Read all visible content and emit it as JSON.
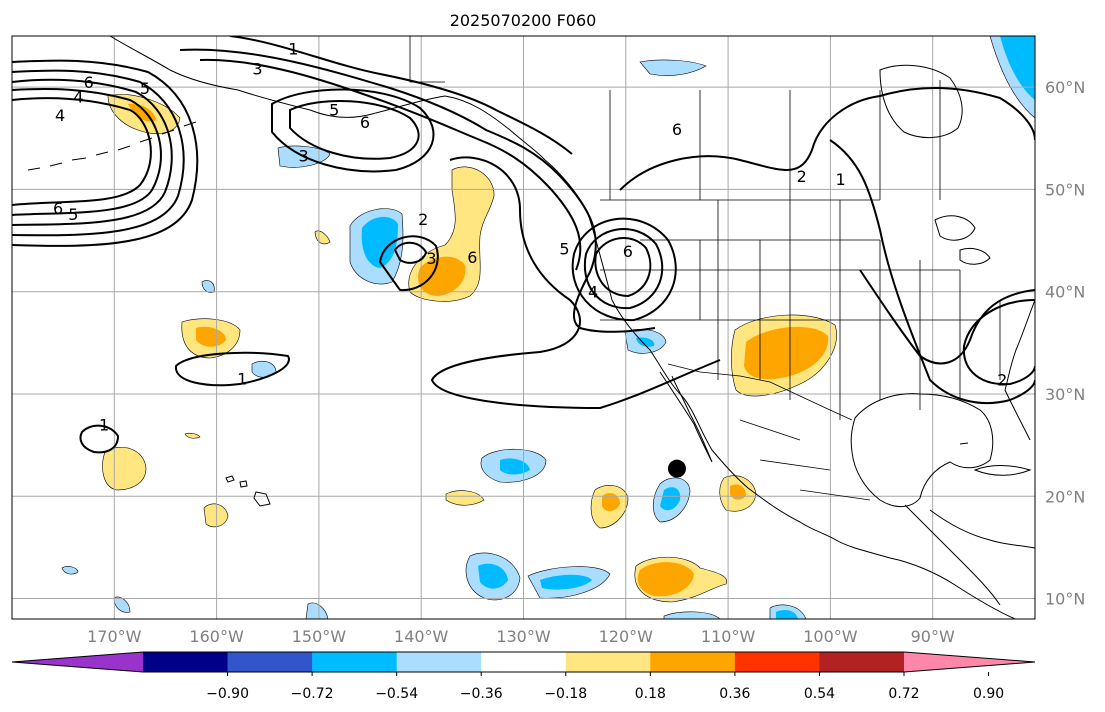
{
  "map": {
    "title": "2025070200 F060",
    "projection": "equirectangular",
    "lon_range": [
      -180,
      -80
    ],
    "lat_range": [
      8,
      65
    ],
    "lon_ticks": [
      {
        "value": -170,
        "label": "170°W"
      },
      {
        "value": -160,
        "label": "160°W"
      },
      {
        "value": -150,
        "label": "150°W"
      },
      {
        "value": -140,
        "label": "140°W"
      },
      {
        "value": -130,
        "label": "130°W"
      },
      {
        "value": -120,
        "label": "120°W"
      },
      {
        "value": -110,
        "label": "110°W"
      },
      {
        "value": -100,
        "label": "100°W"
      },
      {
        "value": -90,
        "label": "90°W"
      }
    ],
    "lat_ticks": [
      {
        "value": 10,
        "label": "10°N"
      },
      {
        "value": 20,
        "label": "20°N"
      },
      {
        "value": 30,
        "label": "30°N"
      },
      {
        "value": 40,
        "label": "40°N"
      },
      {
        "value": 50,
        "label": "50°N"
      },
      {
        "value": 60,
        "label": "60°N"
      }
    ],
    "marker": {
      "lon": -115,
      "lat": 22.7,
      "color": "#000000"
    }
  },
  "colorbar": {
    "bins": [
      {
        "color": "#9933cc"
      },
      {
        "color": "#000088"
      },
      {
        "color": "#3355cc"
      },
      {
        "color": "#00bbff"
      },
      {
        "color": "#aaddff"
      },
      {
        "color": "#ffffff"
      },
      {
        "color": "#ffe680"
      },
      {
        "color": "#ffa500"
      },
      {
        "color": "#ff3300"
      },
      {
        "color": "#b22222"
      },
      {
        "color": "#ff88aa"
      }
    ],
    "ticks": [
      "−0.90",
      "−0.72",
      "−0.54",
      "−0.36",
      "−0.18",
      "0.18",
      "0.36",
      "0.54",
      "0.72",
      "0.90"
    ]
  },
  "contour_labels": [
    {
      "text": "1",
      "lon": -152.5,
      "lat": 63.8
    },
    {
      "text": "3",
      "lon": -156.0,
      "lat": 61.8
    },
    {
      "text": "6",
      "lon": -172.5,
      "lat": 60.5
    },
    {
      "text": "4",
      "lon": -173.5,
      "lat": 59.1
    },
    {
      "text": "5",
      "lon": -167.0,
      "lat": 59.9
    },
    {
      "text": "4",
      "lon": -175.3,
      "lat": 57.3
    },
    {
      "text": "5",
      "lon": -148.5,
      "lat": 57.8
    },
    {
      "text": "6",
      "lon": -145.5,
      "lat": 56.6
    },
    {
      "text": "3",
      "lon": -151.5,
      "lat": 53.3
    },
    {
      "text": "6",
      "lon": -175.5,
      "lat": 48.2
    },
    {
      "text": "5",
      "lon": -174.0,
      "lat": 47.6
    },
    {
      "text": "2",
      "lon": -139.8,
      "lat": 47.1
    },
    {
      "text": "3",
      "lon": -139.0,
      "lat": 43.3
    },
    {
      "text": "6",
      "lon": -135.0,
      "lat": 43.4
    },
    {
      "text": "5",
      "lon": -126.0,
      "lat": 44.2
    },
    {
      "text": "6",
      "lon": -119.8,
      "lat": 44.0
    },
    {
      "text": "4",
      "lon": -123.2,
      "lat": 40.0
    },
    {
      "text": "6",
      "lon": -115.0,
      "lat": 55.9
    },
    {
      "text": "2",
      "lon": -102.8,
      "lat": 51.3
    },
    {
      "text": "1",
      "lon": -99.0,
      "lat": 51.0
    },
    {
      "text": "2",
      "lon": -83.2,
      "lat": 31.4
    },
    {
      "text": "1",
      "lon": -157.5,
      "lat": 31.5
    },
    {
      "text": "1",
      "lon": -171.0,
      "lat": 27.0
    }
  ]
}
